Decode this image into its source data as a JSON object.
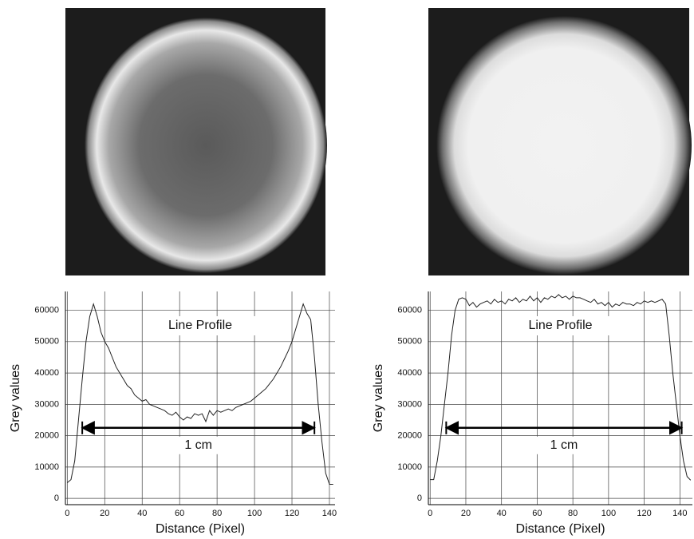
{
  "chart_data": [
    {
      "type": "line",
      "annotation": "Line Profile",
      "xlabel": "Distance (Pixel)",
      "ylabel": "Grey values",
      "xlim": [
        -1,
        143
      ],
      "ylim": [
        -2000,
        66000
      ],
      "xticks": [
        0,
        20,
        40,
        60,
        80,
        100,
        120,
        140
      ],
      "yticks": [
        0,
        10000,
        20000,
        30000,
        40000,
        50000,
        60000
      ],
      "grid": true,
      "color": "#222222",
      "arrow": {
        "label": "1 cm",
        "x": [
          8,
          132
        ],
        "y": 22500
      },
      "x": [
        0,
        2,
        4,
        6,
        8,
        10,
        12,
        14,
        16,
        18,
        20,
        22,
        24,
        26,
        28,
        30,
        32,
        34,
        36,
        38,
        40,
        42,
        44,
        46,
        48,
        50,
        52,
        54,
        56,
        58,
        60,
        62,
        64,
        66,
        68,
        70,
        72,
        74,
        76,
        78,
        80,
        82,
        84,
        86,
        88,
        90,
        92,
        94,
        96,
        98,
        100,
        102,
        104,
        106,
        108,
        110,
        112,
        114,
        116,
        118,
        120,
        122,
        124,
        126,
        128,
        130,
        132,
        134,
        136,
        138,
        140,
        142
      ],
      "values": [
        5000,
        6000,
        12000,
        25000,
        38000,
        50000,
        58000,
        62000,
        58000,
        53000,
        50000,
        48000,
        45000,
        42000,
        40000,
        38000,
        36000,
        35000,
        33000,
        32000,
        31000,
        31500,
        30000,
        29500,
        29000,
        28500,
        28000,
        27000,
        26500,
        27500,
        26000,
        25000,
        26000,
        25500,
        27000,
        26500,
        27000,
        24500,
        28000,
        26500,
        28000,
        27500,
        28000,
        28500,
        28000,
        29000,
        29500,
        30000,
        30500,
        31000,
        32000,
        33000,
        34000,
        35000,
        36500,
        38000,
        40000,
        42000,
        44500,
        47000,
        50000,
        54000,
        58000,
        62000,
        59000,
        57000,
        45000,
        30000,
        18000,
        8000,
        4500,
        4500
      ]
    },
    {
      "type": "line",
      "annotation": "Line Profile",
      "xlabel": "Distance (Pixel)",
      "ylabel": "Grey values",
      "xlim": [
        -1,
        147
      ],
      "ylim": [
        -2000,
        66000
      ],
      "xticks": [
        0,
        20,
        40,
        60,
        80,
        100,
        120,
        140
      ],
      "yticks": [
        0,
        10000,
        20000,
        30000,
        40000,
        50000,
        60000
      ],
      "grid": true,
      "color": "#222222",
      "arrow": {
        "label": "1 cm",
        "x": [
          9,
          141
        ],
        "y": 22500
      },
      "x": [
        0,
        2,
        4,
        6,
        8,
        10,
        12,
        14,
        16,
        18,
        20,
        22,
        24,
        26,
        28,
        30,
        32,
        34,
        36,
        38,
        40,
        42,
        44,
        46,
        48,
        50,
        52,
        54,
        56,
        58,
        60,
        62,
        64,
        66,
        68,
        70,
        72,
        74,
        76,
        78,
        80,
        82,
        84,
        86,
        88,
        90,
        92,
        94,
        96,
        98,
        100,
        102,
        104,
        106,
        108,
        110,
        112,
        114,
        116,
        118,
        120,
        122,
        124,
        126,
        128,
        130,
        132,
        134,
        136,
        138,
        140,
        142,
        144,
        146
      ],
      "values": [
        6000,
        6000,
        12000,
        20000,
        30000,
        40000,
        52000,
        60000,
        63500,
        64000,
        63500,
        61500,
        62500,
        61000,
        62000,
        62500,
        63000,
        62000,
        63500,
        62500,
        63000,
        62000,
        63500,
        63000,
        64000,
        62500,
        63500,
        63000,
        64500,
        63000,
        64000,
        62500,
        64000,
        63500,
        64500,
        64000,
        65000,
        64000,
        64500,
        63500,
        64500,
        64000,
        64000,
        63500,
        63000,
        62500,
        63500,
        62000,
        62500,
        61500,
        62500,
        61000,
        62000,
        61500,
        62500,
        62000,
        62000,
        61500,
        62500,
        62000,
        63000,
        62500,
        63000,
        62500,
        63000,
        63500,
        62000,
        52000,
        40000,
        30000,
        20000,
        12000,
        7000,
        5800
      ]
    }
  ]
}
